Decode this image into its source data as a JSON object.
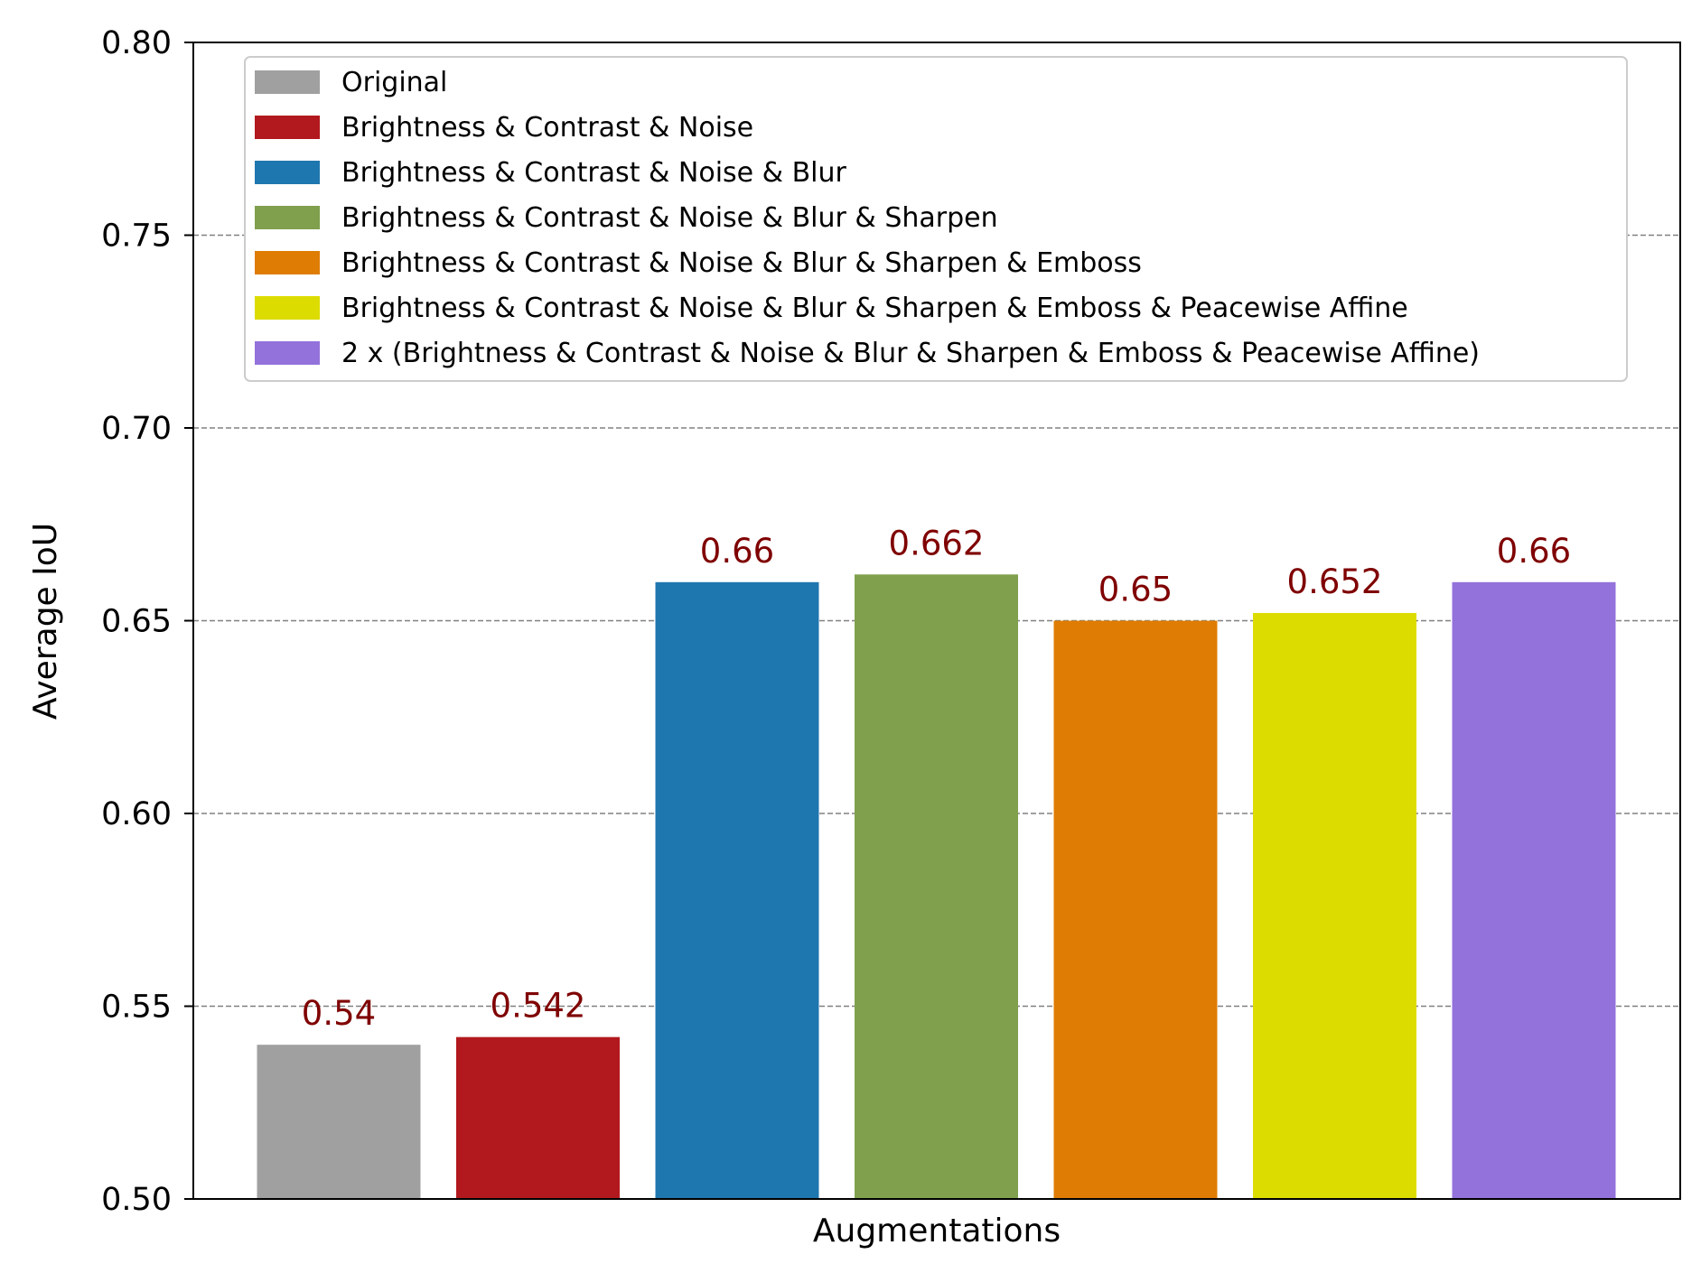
{
  "chart_data": {
    "type": "bar",
    "xlabel": "Augmentations",
    "ylabel": "Average IoU",
    "ylim": [
      0.5,
      0.8
    ],
    "yticks": [
      "0.50",
      "0.55",
      "0.60",
      "0.65",
      "0.70",
      "0.75",
      "0.80"
    ],
    "grid": "horizontal dashed",
    "legend_position": "top",
    "label_color": "#7f0000",
    "series": [
      {
        "name": "Original",
        "value": 0.54,
        "label": "0.54",
        "color": "#a0a0a0"
      },
      {
        "name": "Brightness & Contrast & Noise",
        "value": 0.542,
        "label": "0.542",
        "color": "#b2191e"
      },
      {
        "name": "Brightness & Contrast & Noise & Blur",
        "value": 0.66,
        "label": "0.66",
        "color": "#1f77b0"
      },
      {
        "name": "Brightness & Contrast & Noise & Blur & Sharpen",
        "value": 0.662,
        "label": "0.662",
        "color": "#80a04d"
      },
      {
        "name": "Brightness & Contrast & Noise & Blur & Sharpen & Emboss",
        "value": 0.65,
        "label": "0.65",
        "color": "#df7c04"
      },
      {
        "name": "Brightness & Contrast & Noise & Blur & Sharpen & Emboss & Peacewise Affine",
        "value": 0.652,
        "label": "0.652",
        "color": "#dcdc00"
      },
      {
        "name": "2 x (Brightness & Contrast & Noise & Blur & Sharpen & Emboss & Peacewise Affine)",
        "value": 0.66,
        "label": "0.66",
        "color": "#9372db"
      }
    ]
  }
}
